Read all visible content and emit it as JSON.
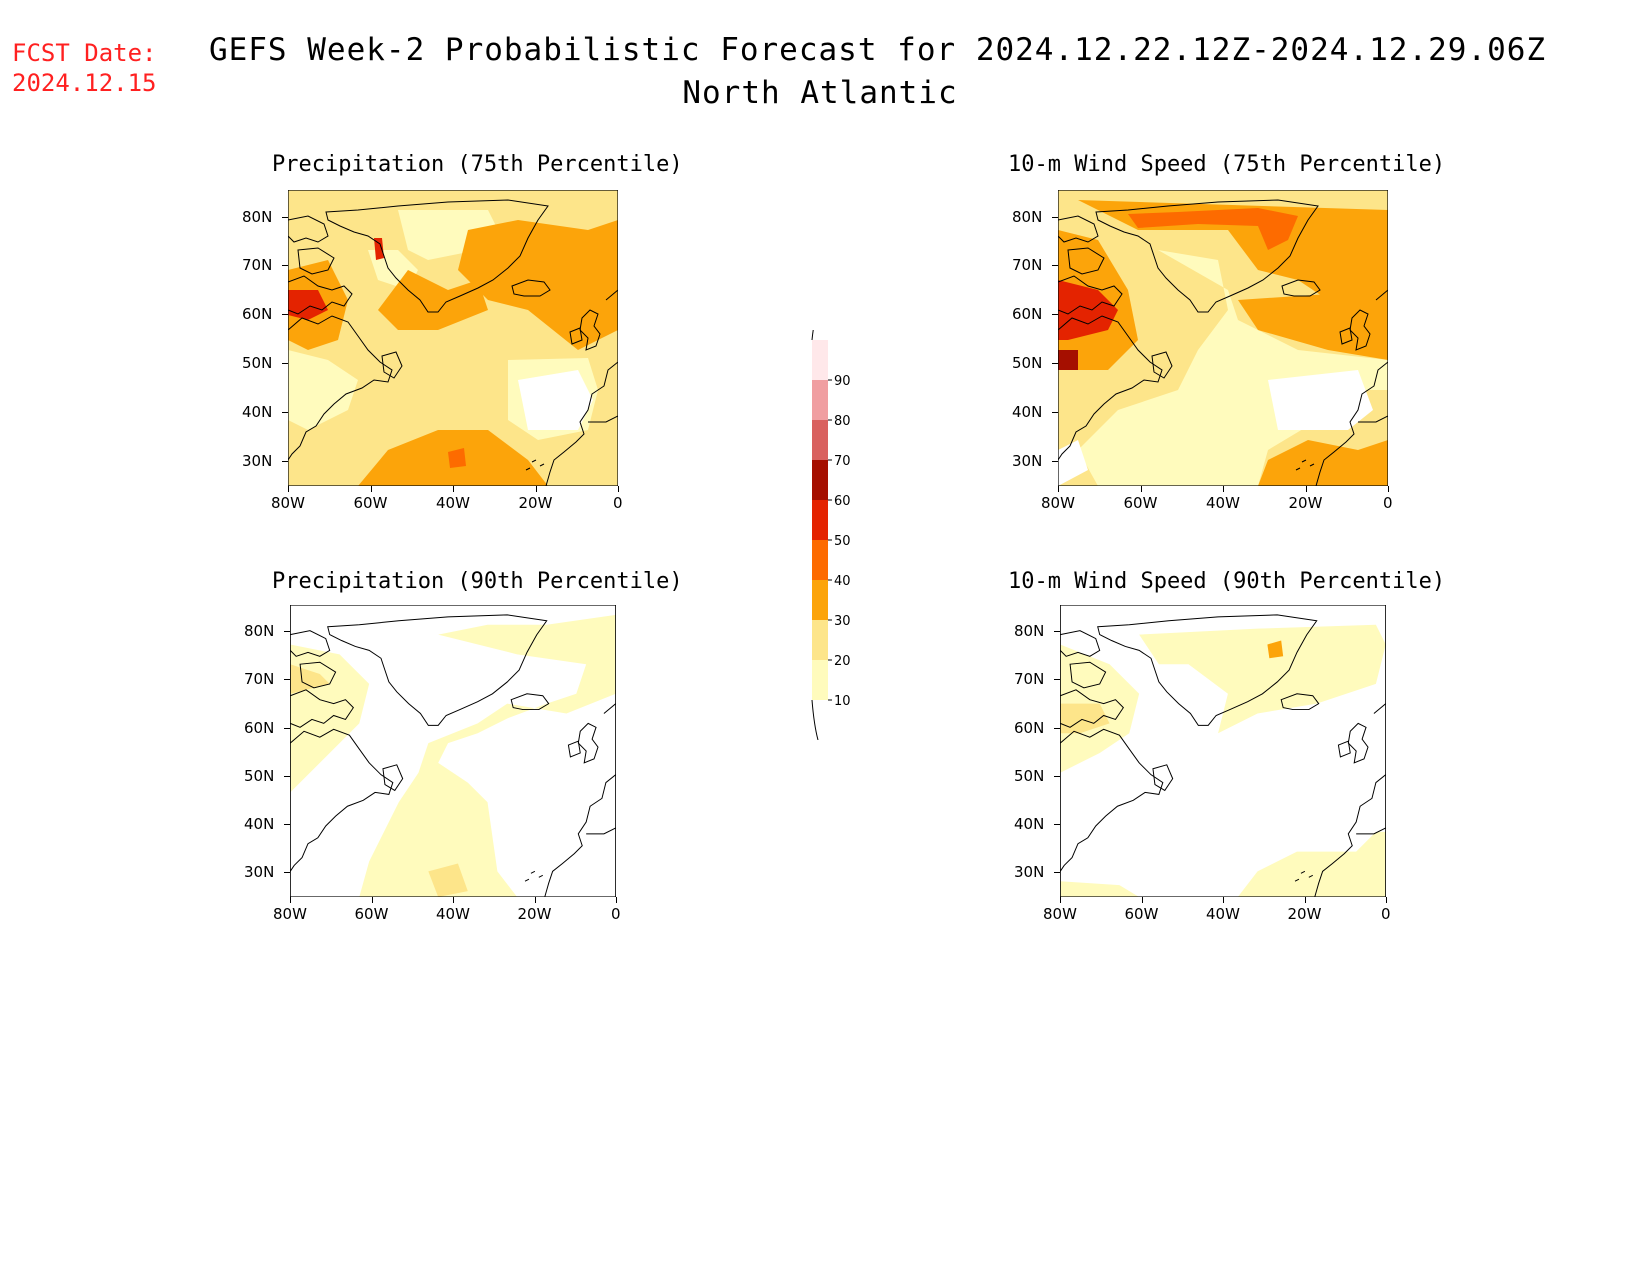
{
  "header": {
    "fcst_label": "FCST Date:",
    "fcst_date": "2024.12.15",
    "title": "GEFS Week-2 Probabilistic Forecast for 2024.12.22.12Z-2024.12.29.06Z",
    "subtitle": "North Atlantic"
  },
  "panels": [
    {
      "id": "precip75",
      "title": "Precipitation (75th Percentile)"
    },
    {
      "id": "wind75",
      "title": "10-m Wind Speed (75th Percentile)"
    },
    {
      "id": "precip90",
      "title": "Precipitation (90th Percentile)"
    },
    {
      "id": "wind90",
      "title": "10-m Wind Speed (90th Percentile)"
    }
  ],
  "axes": {
    "lat_labels": [
      "80N",
      "70N",
      "60N",
      "50N",
      "40N",
      "30N"
    ],
    "lon_labels": [
      "80W",
      "60W",
      "40W",
      "20W",
      "0"
    ]
  },
  "colorbar": {
    "levels": [
      "10",
      "20",
      "30",
      "40",
      "50",
      "60",
      "70",
      "80",
      "90"
    ],
    "colors": [
      "#fffbbd",
      "#fde58a",
      "#fca40a",
      "#fd6b00",
      "#e42300",
      "#a50f00",
      "#d9615f",
      "#f09ea1",
      "#ffe8ea"
    ]
  }
}
